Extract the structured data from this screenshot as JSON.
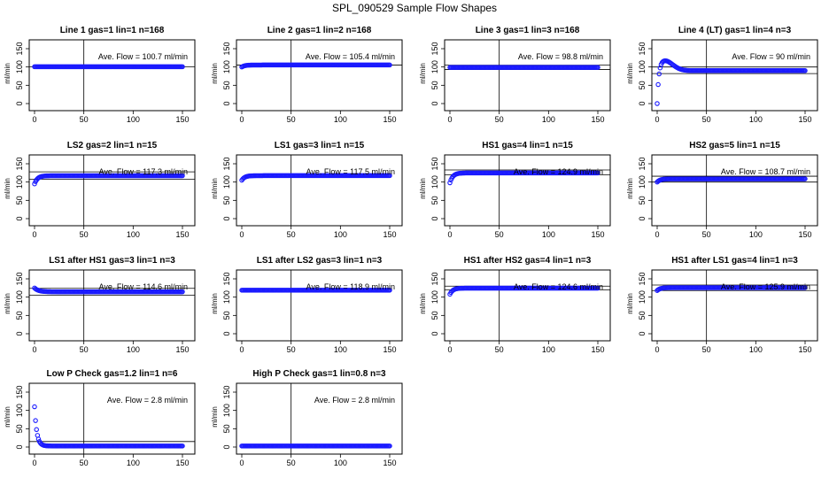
{
  "page_title": "SPL_090529  Sample Flow Shapes",
  "colors": {
    "points": "#1a1aff",
    "axes": "#000000",
    "background": "#ffffff"
  },
  "chart_data": [
    {
      "type": "scatter",
      "title": "Line 1 gas=1 lin=1 n=168",
      "ylabel": "ml/min",
      "xlim": [
        0,
        150
      ],
      "ylim": [
        0,
        150
      ],
      "xticks": [
        0,
        50,
        100,
        150
      ],
      "yticks": [
        0,
        50,
        100,
        150
      ],
      "annotation": "Ave. Flow =  100.7  ml/min",
      "shape": "flat",
      "start": 100.7,
      "level": 100.7,
      "vline_x": 50,
      "hlines": [
        100.7
      ]
    },
    {
      "type": "scatter",
      "title": "Line 2 gas=1 lin=2 n=168",
      "ylabel": "ml/min",
      "xlim": [
        0,
        150
      ],
      "ylim": [
        0,
        150
      ],
      "xticks": [
        0,
        50,
        100,
        150
      ],
      "yticks": [
        0,
        50,
        100,
        150
      ],
      "annotation": "Ave. Flow =  105.4  ml/min",
      "shape": "rise",
      "start": 100,
      "level": 105.4,
      "vline_x": 50,
      "hlines": [
        105.4
      ]
    },
    {
      "type": "scatter",
      "title": "Line 3 gas=1 lin=3 n=168",
      "ylabel": "ml/min",
      "xlim": [
        0,
        150
      ],
      "ylim": [
        0,
        150
      ],
      "xticks": [
        0,
        50,
        100,
        150
      ],
      "yticks": [
        0,
        50,
        100,
        150
      ],
      "annotation": "Ave. Flow =  98.8  ml/min",
      "shape": "flat",
      "start": 99,
      "level": 98.8,
      "vline_x": 50,
      "hlines": [
        105,
        93
      ]
    },
    {
      "type": "scatter",
      "title": "Line 4 (LT) gas=1 lin=4 n=3",
      "ylabel": "ml/min",
      "xlim": [
        0,
        150
      ],
      "ylim": [
        0,
        150
      ],
      "xticks": [
        0,
        50,
        100,
        150
      ],
      "yticks": [
        0,
        50,
        100,
        150
      ],
      "annotation": "Ave. Flow =  90  ml/min",
      "shape": "overshoot",
      "start": 0,
      "level": 90,
      "vline_x": 50,
      "hlines": [
        100,
        82
      ]
    },
    {
      "type": "scatter",
      "title": "LS2 gas=2 lin=1 n=15",
      "ylabel": "ml/min",
      "xlim": [
        0,
        150
      ],
      "ylim": [
        0,
        150
      ],
      "xticks": [
        0,
        50,
        100,
        150
      ],
      "yticks": [
        0,
        50,
        100,
        150
      ],
      "annotation": "Ave. Flow =  117.3  ml/min",
      "shape": "rise",
      "start": 95,
      "level": 117.3,
      "vline_x": 50,
      "hlines": [
        128,
        108
      ]
    },
    {
      "type": "scatter",
      "title": "LS1 gas=3 lin=1 n=15",
      "ylabel": "ml/min",
      "xlim": [
        0,
        150
      ],
      "ylim": [
        0,
        150
      ],
      "xticks": [
        0,
        50,
        100,
        150
      ],
      "yticks": [
        0,
        50,
        100,
        150
      ],
      "annotation": "Ave. Flow =  117.5  ml/min",
      "shape": "rise",
      "start": 105,
      "level": 117.5,
      "vline_x": 50,
      "hlines": []
    },
    {
      "type": "scatter",
      "title": "HS1 gas=4 lin=1 n=15",
      "ylabel": "ml/min",
      "xlim": [
        0,
        150
      ],
      "ylim": [
        0,
        150
      ],
      "xticks": [
        0,
        50,
        100,
        150
      ],
      "yticks": [
        0,
        50,
        100,
        150
      ],
      "annotation": "Ave. Flow =  124.9  ml/min",
      "shape": "rise",
      "start": 98,
      "level": 124.9,
      "vline_x": 50,
      "hlines": [
        133,
        120
      ]
    },
    {
      "type": "scatter",
      "title": "HS2 gas=5 lin=1 n=15",
      "ylabel": "ml/min",
      "xlim": [
        0,
        150
      ],
      "ylim": [
        0,
        150
      ],
      "xticks": [
        0,
        50,
        100,
        150
      ],
      "yticks": [
        0,
        50,
        100,
        150
      ],
      "annotation": "Ave. Flow =  108.7  ml/min",
      "shape": "rise",
      "start": 100,
      "level": 108.7,
      "vline_x": 50,
      "hlines": [
        116,
        100
      ]
    },
    {
      "type": "scatter",
      "title": "LS1 after HS1 gas=3 lin=1 n=3",
      "ylabel": "ml/min",
      "xlim": [
        0,
        150
      ],
      "ylim": [
        0,
        150
      ],
      "xticks": [
        0,
        50,
        100,
        150
      ],
      "yticks": [
        0,
        50,
        100,
        150
      ],
      "annotation": "Ave. Flow =  114.6  ml/min",
      "shape": "decay",
      "start": 125,
      "level": 114.6,
      "vline_x": 50,
      "hlines": [
        124,
        105
      ]
    },
    {
      "type": "scatter",
      "title": "LS1 after LS2 gas=3 lin=1 n=3",
      "ylabel": "ml/min",
      "xlim": [
        0,
        150
      ],
      "ylim": [
        0,
        150
      ],
      "xticks": [
        0,
        50,
        100,
        150
      ],
      "yticks": [
        0,
        50,
        100,
        150
      ],
      "annotation": "Ave. Flow =  118.9  ml/min",
      "shape": "flat",
      "start": 119,
      "level": 118.9,
      "vline_x": 50,
      "hlines": []
    },
    {
      "type": "scatter",
      "title": "HS1 after HS2 gas=4 lin=1 n=3",
      "ylabel": "ml/min",
      "xlim": [
        0,
        150
      ],
      "ylim": [
        0,
        150
      ],
      "xticks": [
        0,
        50,
        100,
        150
      ],
      "yticks": [
        0,
        50,
        100,
        150
      ],
      "annotation": "Ave. Flow =  124.6  ml/min",
      "shape": "rise",
      "start": 108,
      "level": 124.6,
      "vline_x": 50,
      "hlines": [
        130,
        120
      ]
    },
    {
      "type": "scatter",
      "title": "HS1 after LS1 gas=4 lin=1 n=3",
      "ylabel": "ml/min",
      "xlim": [
        0,
        150
      ],
      "ylim": [
        0,
        150
      ],
      "xticks": [
        0,
        50,
        100,
        150
      ],
      "yticks": [
        0,
        50,
        100,
        150
      ],
      "annotation": "Ave. Flow =  125.9  ml/min",
      "shape": "rise",
      "start": 118,
      "level": 125.9,
      "vline_x": 50,
      "hlines": [
        133,
        118
      ]
    },
    {
      "type": "scatter",
      "title": "Low P Check gas=1.2 lin=1 n=6",
      "ylabel": "ml/min",
      "xlim": [
        0,
        150
      ],
      "ylim": [
        0,
        150
      ],
      "xticks": [
        0,
        50,
        100,
        150
      ],
      "yticks": [
        0,
        50,
        100,
        150
      ],
      "annotation": "Ave. Flow =  2.8  ml/min",
      "shape": "spike_decay",
      "start": 110,
      "level": 2.8,
      "vline_x": 50,
      "hlines": [
        15
      ]
    },
    {
      "type": "scatter",
      "title": "High P Check gas=1 lin=0.8 n=3",
      "ylabel": "ml/min",
      "xlim": [
        0,
        150
      ],
      "ylim": [
        0,
        150
      ],
      "xticks": [
        0,
        50,
        100,
        150
      ],
      "yticks": [
        0,
        50,
        100,
        150
      ],
      "annotation": "Ave. Flow =  2.8  ml/min",
      "shape": "flat",
      "start": 2.8,
      "level": 2.8,
      "vline_x": 50,
      "hlines": []
    }
  ]
}
